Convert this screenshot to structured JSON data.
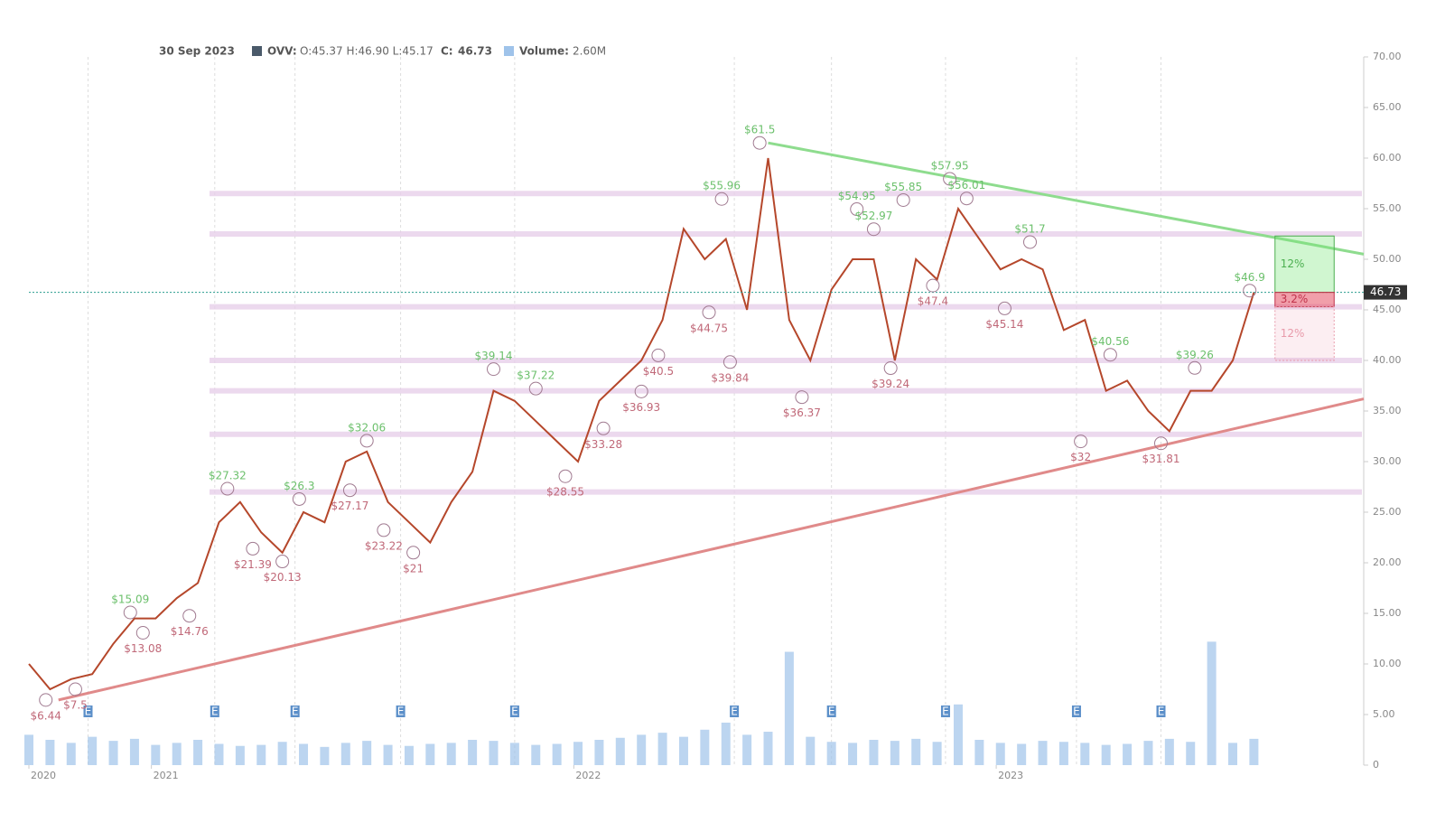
{
  "chart_data": {
    "type": "line",
    "header": {
      "date": "30 Sep 2023",
      "symbol": "OVV:",
      "ohlc": "O:45.37 H:46.90 L:45.17",
      "close_label": "C:",
      "volume_label": "Volume:",
      "volume": "2.60M"
    },
    "last_price": 46.73,
    "xlim": [
      2020.71,
      2023.87
    ],
    "xticks": [
      {
        "value": 2020.71,
        "label": "2020"
      },
      2021,
      2022,
      2023
    ],
    "ylim": [
      0,
      70
    ],
    "yticks": [
      {
        "value": 70,
        "label": "70.00"
      },
      {
        "value": 65,
        "label": "65.00"
      },
      {
        "value": 60,
        "label": "60.00"
      },
      {
        "value": 55,
        "label": "55.00"
      },
      {
        "value": 50,
        "label": "50.00"
      },
      {
        "value": 45,
        "label": "45.00"
      },
      {
        "value": 40,
        "label": "40.00"
      },
      {
        "value": 35,
        "label": "35.00"
      },
      {
        "value": 30,
        "label": "30.00"
      },
      {
        "value": 25,
        "label": "25.00"
      },
      {
        "value": 20,
        "label": "20.00"
      },
      {
        "value": 15,
        "label": "15.00"
      },
      {
        "value": 10,
        "label": "10.00"
      },
      {
        "value": 5,
        "label": "5.00"
      },
      0
    ],
    "x": [
      2020.71,
      2020.76,
      2020.81,
      2020.86,
      2020.91,
      2020.96,
      2021.01,
      2021.06,
      2021.11,
      2021.16,
      2021.21,
      2021.26,
      2021.31,
      2021.36,
      2021.41,
      2021.46,
      2021.51,
      2021.56,
      2021.61,
      2021.66,
      2021.71,
      2021.76,
      2021.81,
      2021.86,
      2021.91,
      2021.96,
      2022.01,
      2022.06,
      2022.11,
      2022.16,
      2022.21,
      2022.26,
      2022.31,
      2022.36,
      2022.41,
      2022.46,
      2022.51,
      2022.56,
      2022.61,
      2022.66,
      2022.71,
      2022.76,
      2022.81,
      2022.86,
      2022.91,
      2022.96,
      2023.01,
      2023.06,
      2023.11,
      2023.16,
      2023.21,
      2023.26,
      2023.31,
      2023.36,
      2023.41,
      2023.46,
      2023.51,
      2023.56,
      2023.61
    ],
    "series": [
      {
        "name": "OVV",
        "color": "#b5472b",
        "values": [
          10,
          7.5,
          8.5,
          9,
          12,
          14.5,
          14.5,
          16.5,
          18,
          24,
          26,
          23,
          21,
          25,
          24,
          30,
          31,
          26,
          24,
          22,
          26,
          29,
          37,
          36,
          34,
          32,
          30,
          36,
          38,
          40,
          44,
          53,
          50,
          52,
          45,
          60,
          44,
          40,
          47,
          50,
          50,
          40,
          50,
          48,
          55,
          52,
          49,
          50,
          49,
          43,
          44,
          37,
          38,
          35,
          33,
          37,
          37,
          40,
          46.73
        ]
      },
      {
        "name": "Volume",
        "color": "#9fc3ea",
        "values": [
          3,
          2.5,
          2.2,
          2.8,
          2.4,
          2.6,
          2,
          2.2,
          2.5,
          2.1,
          1.9,
          2,
          2.3,
          2.1,
          1.8,
          2.2,
          2.4,
          2,
          1.9,
          2.1,
          2.2,
          2.5,
          2.4,
          2.2,
          2,
          2.1,
          2.3,
          2.5,
          2.7,
          3,
          3.2,
          2.8,
          3.5,
          4.2,
          3,
          3.3,
          11.2,
          2.8,
          2.3,
          2.2,
          2.5,
          2.4,
          2.6,
          2.3,
          6,
          2.5,
          2.2,
          2.1,
          2.4,
          2.3,
          2.2,
          2,
          2.1,
          2.4,
          2.6,
          2.3,
          12.2,
          2.2,
          2.6
        ]
      }
    ],
    "levels": [
      56.5,
      52.5,
      45.3,
      40,
      37,
      32.7,
      27
    ],
    "trendlines": [
      {
        "color": "#8edc8e",
        "x": [
          2022.46,
          2023.87
        ],
        "values": [
          61.5,
          50.5
        ]
      },
      {
        "color": "#e08a8a",
        "x": [
          2020.78,
          2023.87
        ],
        "values": [
          6.44,
          36.2
        ]
      }
    ],
    "highs": [
      {
        "label": "$61.5",
        "x": 2022.44,
        "value": 61.5
      },
      {
        "label": "$57.95",
        "x": 2022.89,
        "value": 57.95
      },
      {
        "label": "$55.96",
        "x": 2022.35,
        "value": 55.96
      },
      {
        "label": "$55.85",
        "x": 2022.78,
        "value": 55.85
      },
      {
        "label": "$56.01",
        "x": 2022.93,
        "value": 56.01
      },
      {
        "label": "$54.95",
        "x": 2022.67,
        "value": 54.95
      },
      {
        "label": "$52.97",
        "x": 2022.71,
        "value": 52.97
      },
      {
        "label": "$51.7",
        "x": 2023.08,
        "value": 51.7
      },
      {
        "label": "$46.9",
        "x": 2023.6,
        "value": 46.9
      },
      {
        "label": "$40.56",
        "x": 2023.27,
        "value": 40.56
      },
      {
        "label": "$39.26",
        "x": 2023.47,
        "value": 39.26
      },
      {
        "label": "$39.14",
        "x": 2021.81,
        "value": 39.14
      },
      {
        "label": "$37.22",
        "x": 2021.91,
        "value": 37.22
      },
      {
        "label": "$32.06",
        "x": 2021.51,
        "value": 32.06
      },
      {
        "label": "$27.32",
        "x": 2021.18,
        "value": 27.32
      },
      {
        "label": "$26.3",
        "x": 2021.35,
        "value": 26.3
      },
      {
        "label": "$15.09",
        "x": 2020.95,
        "value": 15.09
      }
    ],
    "lows": [
      {
        "label": "$6.44",
        "x": 2020.75,
        "value": 6.44
      },
      {
        "label": "$7.5",
        "x": 2020.82,
        "value": 7.5
      },
      {
        "label": "$13.08",
        "x": 2020.98,
        "value": 13.08
      },
      {
        "label": "$14.76",
        "x": 2021.09,
        "value": 14.76
      },
      {
        "label": "$21.39",
        "x": 2021.24,
        "value": 21.39
      },
      {
        "label": "$20.13",
        "x": 2021.31,
        "value": 20.13
      },
      {
        "label": "$27.17",
        "x": 2021.47,
        "value": 27.17
      },
      {
        "label": "$23.22",
        "x": 2021.55,
        "value": 23.22
      },
      {
        "label": "$21",
        "x": 2021.62,
        "value": 21
      },
      {
        "label": "$28.55",
        "x": 2021.98,
        "value": 28.55
      },
      {
        "label": "$33.28",
        "x": 2022.07,
        "value": 33.28
      },
      {
        "label": "$36.93",
        "x": 2022.16,
        "value": 36.93
      },
      {
        "label": "$40.5",
        "x": 2022.2,
        "value": 40.5
      },
      {
        "label": "$44.75",
        "x": 2022.32,
        "value": 44.75
      },
      {
        "label": "$39.84",
        "x": 2022.37,
        "value": 39.84
      },
      {
        "label": "$36.37",
        "x": 2022.54,
        "value": 36.37
      },
      {
        "label": "$39.24",
        "x": 2022.75,
        "value": 39.24
      },
      {
        "label": "$47.4",
        "x": 2022.85,
        "value": 47.4
      },
      {
        "label": "$45.14",
        "x": 2023.02,
        "value": 45.14
      },
      {
        "label": "$32",
        "x": 2023.2,
        "value": 32
      },
      {
        "label": "$31.81",
        "x": 2023.39,
        "value": 31.81
      }
    ],
    "earnings": {
      "label": "E",
      "x": [
        2020.85,
        2021.15,
        2021.34,
        2021.59,
        2021.86,
        2022.38,
        2022.61,
        2022.88,
        2023.19,
        2023.39
      ]
    },
    "position_box": {
      "x": [
        2023.66,
        2023.8
      ],
      "levels": [
        52.3,
        46.73,
        45.3,
        40
      ],
      "labels": [
        "12%",
        "3.2%",
        "12%"
      ]
    }
  }
}
